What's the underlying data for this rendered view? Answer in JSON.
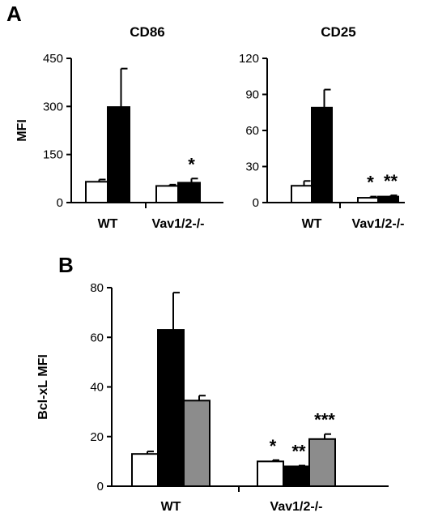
{
  "panels": {
    "a": {
      "letter": "A"
    },
    "b": {
      "letter": "B"
    }
  },
  "chart_data": [
    {
      "type": "bar",
      "title": "CD86",
      "xlabel": "",
      "ylabel": "MFI",
      "ylim": [
        0,
        450
      ],
      "yticks": [
        "0",
        "150",
        "300",
        "450"
      ],
      "categories": [
        "WT",
        "Vav1/2-/-"
      ],
      "series": [
        {
          "fill": "#ffffff",
          "values": [
            65,
            52
          ],
          "errors": [
            7,
            4
          ]
        },
        {
          "fill": "#000000",
          "values": [
            298,
            62
          ],
          "errors": [
            120,
            13
          ]
        }
      ],
      "annotations": [
        "",
        "*"
      ]
    },
    {
      "type": "bar",
      "title": "CD25",
      "xlabel": "",
      "ylabel": "",
      "ylim": [
        0,
        120
      ],
      "yticks": [
        "0",
        "30",
        "60",
        "90",
        "120"
      ],
      "categories": [
        "WT",
        "Vav1/2-/-"
      ],
      "series": [
        {
          "fill": "#ffffff",
          "values": [
            14,
            4
          ],
          "errors": [
            4,
            1
          ]
        },
        {
          "fill": "#000000",
          "values": [
            79,
            5
          ],
          "errors": [
            15,
            1
          ]
        }
      ],
      "annotations": [
        "",
        "* **"
      ]
    },
    {
      "type": "bar",
      "title": "",
      "xlabel": "",
      "ylabel": "Bcl-xL MFI",
      "ylim": [
        0,
        80
      ],
      "yticks": [
        "0",
        "20",
        "40",
        "60",
        "80"
      ],
      "categories": [
        "WT",
        "Vav1/2-/-"
      ],
      "series": [
        {
          "fill": "#ffffff",
          "values": [
            13,
            10
          ],
          "errors": [
            1,
            0.5
          ]
        },
        {
          "fill": "#000000",
          "values": [
            63,
            8
          ],
          "errors": [
            15,
            0.3
          ]
        },
        {
          "fill": "#8c8c8c",
          "values": [
            34.5,
            19
          ],
          "errors": [
            2,
            2
          ]
        }
      ],
      "annotations": [
        "",
        "* ** ***"
      ]
    }
  ]
}
